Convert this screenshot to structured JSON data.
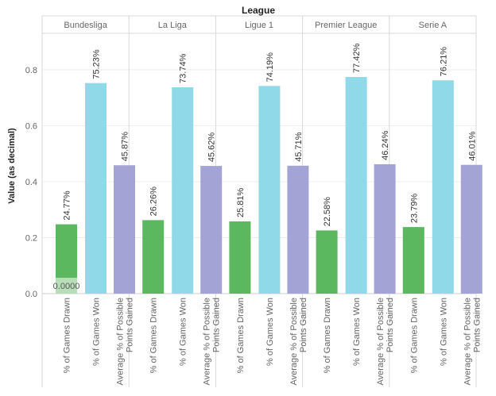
{
  "chart_data": {
    "type": "bar",
    "facet_title": "League",
    "ylabel": "Value (as decimal)",
    "ylim": [
      0,
      0.93
    ],
    "yticks": [
      0.0,
      0.2,
      0.4,
      0.6,
      0.8
    ],
    "ytick_labels": [
      "0.0",
      "0.2",
      "0.4",
      "0.6",
      "0.8"
    ],
    "grid": true,
    "categories": [
      "% of Games Drawn",
      "% of Games Won",
      "Average % of Possible Points Gained"
    ],
    "category_lines": [
      [
        "% of Games Drawn"
      ],
      [
        "% of Games Won"
      ],
      [
        "Average % of Possible",
        "Points Gained"
      ]
    ],
    "colors": [
      "#5cb85f",
      "#8fd9e8",
      "#a3a3d6"
    ],
    "tooltip_label": "0.0000",
    "facets": [
      {
        "name": "Bundesliga",
        "values": [
          0.2477,
          0.7523,
          0.4587
        ],
        "labels": [
          "24.77%",
          "75.23%",
          "45.87%"
        ]
      },
      {
        "name": "La Liga",
        "values": [
          0.2626,
          0.7374,
          0.4562
        ],
        "labels": [
          "26.26%",
          "73.74%",
          "45.62%"
        ]
      },
      {
        "name": "Ligue 1",
        "values": [
          0.2581,
          0.7419,
          0.4571
        ],
        "labels": [
          "25.81%",
          "74.19%",
          "45.71%"
        ]
      },
      {
        "name": "Premier League",
        "values": [
          0.2258,
          0.7742,
          0.4624
        ],
        "labels": [
          "22.58%",
          "77.42%",
          "46.24%"
        ]
      },
      {
        "name": "Serie A",
        "values": [
          0.2379,
          0.7621,
          0.4601
        ],
        "labels": [
          "23.79%",
          "76.21%",
          "46.01%"
        ]
      }
    ]
  }
}
